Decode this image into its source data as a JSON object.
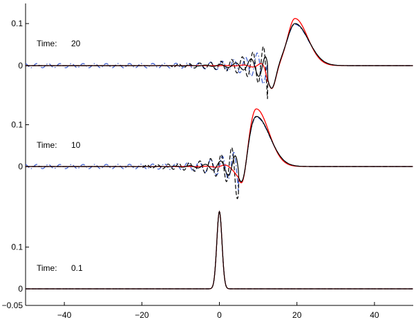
{
  "chart_data": {
    "type": "line",
    "xlabel": "",
    "ylabel": "",
    "xlim": [
      -50,
      50
    ],
    "x_ticks": [
      "−40",
      "−20",
      "0",
      "20",
      "40"
    ],
    "x_tick_values": [
      -40,
      -20,
      0,
      20,
      40
    ],
    "y_min_label": "−0.05",
    "grid": false,
    "legend": "none",
    "panels": [
      {
        "time_label": "Time:",
        "time_value": "20",
        "ylim": [
          -0.06,
          0.14
        ],
        "y_ticks": [
          "0.1",
          "0"
        ],
        "y_tick_values": [
          0.1,
          0
        ],
        "peak_x": 19.5,
        "peaks": {
          "red": 0.112,
          "black": 0.1,
          "blue": 0.098
        },
        "trough": {
          "x": 13.5,
          "y": -0.055
        },
        "ripple_amplitude": {
          "blue": 0.005,
          "dashed": 0.02,
          "black": 0.015
        }
      },
      {
        "time_label": "Time:",
        "time_value": "10",
        "ylim": [
          -0.06,
          0.14
        ],
        "y_ticks": [
          "0.1",
          "0"
        ],
        "y_tick_values": [
          0.1,
          0
        ],
        "peak_x": 9.5,
        "peaks": {
          "red": 0.138,
          "black": 0.12,
          "blue": 0.118
        },
        "trough": {
          "x": 6,
          "y": -0.06
        },
        "ripple_amplitude": {
          "blue": 0.005,
          "dashed": 0.02,
          "black": 0.012
        }
      },
      {
        "time_label": "Time:",
        "time_value": "0.1",
        "ylim": [
          -0.05,
          0.2
        ],
        "y_ticks": [
          "0.1",
          "0"
        ],
        "y_tick_values": [
          0.1,
          0
        ],
        "peak_x": 0,
        "peaks": {
          "red": 0.185,
          "black": 0.185,
          "blue": 0.185
        },
        "trough": null,
        "ripple_amplitude": {
          "blue": 0,
          "dashed": 0,
          "black": 0
        }
      }
    ],
    "series": [
      {
        "color": "#ff0000",
        "style": "solid"
      },
      {
        "color": "#0000ff",
        "style": "dash-dot"
      },
      {
        "color": "#000000",
        "style": "dashed"
      },
      {
        "color": "#000000",
        "style": "solid"
      }
    ]
  }
}
